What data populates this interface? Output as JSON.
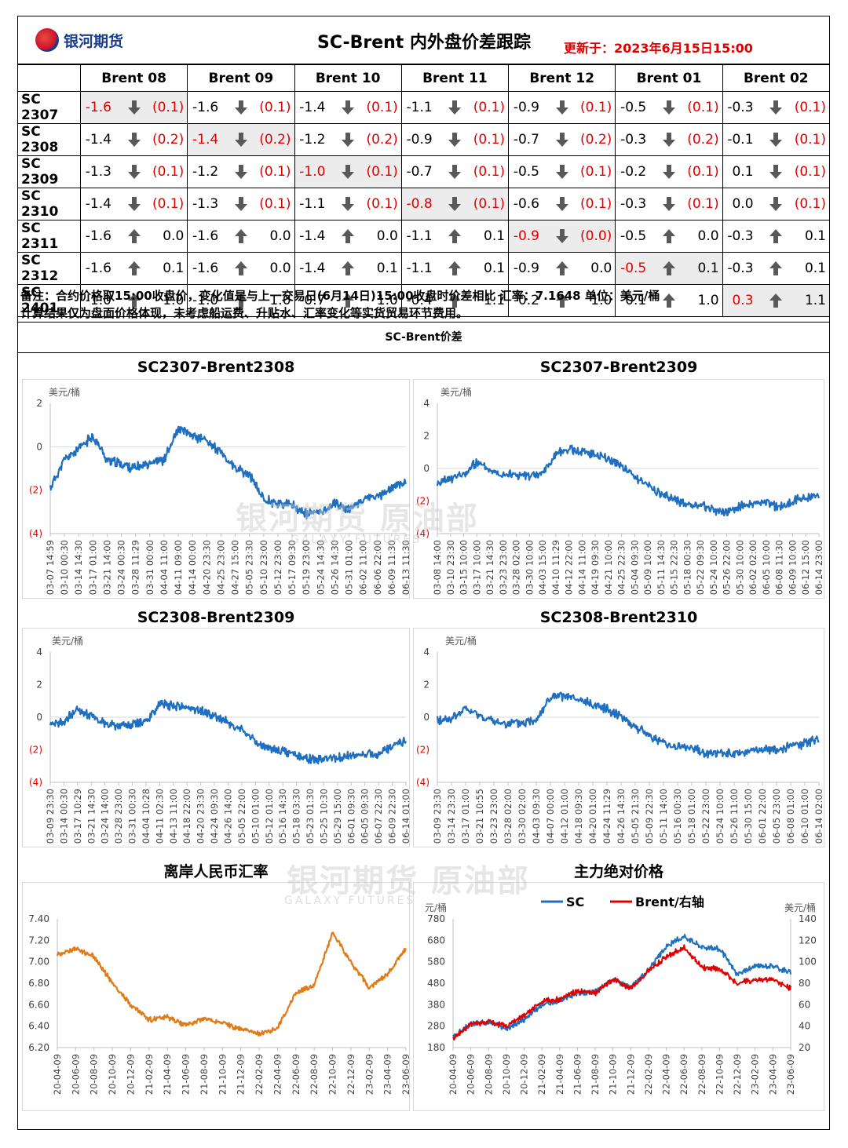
{
  "header": {
    "logo_text": "银河期货",
    "title": "SC-Brent 内外盘价差跟踪",
    "update": "更新于：2023年6月15日15:00"
  },
  "table": {
    "columns": [
      "Brent 08",
      "Brent 09",
      "Brent 10",
      "Brent 11",
      "Brent 12",
      "Brent 01",
      "Brent 02"
    ],
    "rows": [
      {
        "label": "SC 2307",
        "cells": [
          [
            "-1.6",
            "down",
            "(0.1)"
          ],
          [
            "-1.6",
            "down",
            "(0.1)"
          ],
          [
            "-1.4",
            "down",
            "(0.1)"
          ],
          [
            "-1.1",
            "down",
            "(0.1)"
          ],
          [
            "-0.9",
            "down",
            "(0.1)"
          ],
          [
            "-0.5",
            "down",
            "(0.1)"
          ],
          [
            "-0.3",
            "down",
            "(0.1)"
          ]
        ],
        "diag": 0
      },
      {
        "label": "SC 2308",
        "cells": [
          [
            "-1.4",
            "down",
            "(0.2)"
          ],
          [
            "-1.4",
            "down",
            "(0.2)"
          ],
          [
            "-1.2",
            "down",
            "(0.2)"
          ],
          [
            "-0.9",
            "down",
            "(0.1)"
          ],
          [
            "-0.7",
            "down",
            "(0.2)"
          ],
          [
            "-0.3",
            "down",
            "(0.2)"
          ],
          [
            "-0.1",
            "down",
            "(0.1)"
          ]
        ],
        "diag": 1
      },
      {
        "label": "SC 2309",
        "cells": [
          [
            "-1.3",
            "down",
            "(0.1)"
          ],
          [
            "-1.2",
            "down",
            "(0.1)"
          ],
          [
            "-1.0",
            "down",
            "(0.1)"
          ],
          [
            "-0.7",
            "down",
            "(0.1)"
          ],
          [
            "-0.5",
            "down",
            "(0.1)"
          ],
          [
            "-0.2",
            "down",
            "(0.1)"
          ],
          [
            "0.1",
            "down",
            "(0.1)"
          ]
        ],
        "diag": 2
      },
      {
        "label": "SC 2310",
        "cells": [
          [
            "-1.4",
            "down",
            "(0.1)"
          ],
          [
            "-1.3",
            "down",
            "(0.1)"
          ],
          [
            "-1.1",
            "down",
            "(0.1)"
          ],
          [
            "-0.8",
            "down",
            "(0.1)"
          ],
          [
            "-0.6",
            "down",
            "(0.1)"
          ],
          [
            "-0.3",
            "down",
            "(0.1)"
          ],
          [
            "0.0",
            "down",
            "(0.1)"
          ]
        ],
        "diag": 3
      },
      {
        "label": "SC 2311",
        "cells": [
          [
            "-1.6",
            "up",
            "0.0"
          ],
          [
            "-1.6",
            "up",
            "0.0"
          ],
          [
            "-1.4",
            "up",
            "0.0"
          ],
          [
            "-1.1",
            "up",
            "0.1"
          ],
          [
            "-0.9",
            "down",
            "(0.0)"
          ],
          [
            "-0.5",
            "up",
            "0.0"
          ],
          [
            "-0.3",
            "up",
            "0.1"
          ]
        ],
        "diag": 4
      },
      {
        "label": "SC 2312",
        "cells": [
          [
            "-1.6",
            "up",
            "0.1"
          ],
          [
            "-1.6",
            "up",
            "0.0"
          ],
          [
            "-1.4",
            "up",
            "0.1"
          ],
          [
            "-1.1",
            "up",
            "0.1"
          ],
          [
            "-0.9",
            "up",
            "0.0"
          ],
          [
            "-0.5",
            "up",
            "0.1"
          ],
          [
            "-0.3",
            "up",
            "0.1"
          ]
        ],
        "diag": 5
      },
      {
        "label": "SC 2401",
        "cells": [
          [
            "-1.0",
            "up",
            "1.0"
          ],
          [
            "-1.0",
            "up",
            "1.0"
          ],
          [
            "-0.7",
            "up",
            "1.0"
          ],
          [
            "-0.4",
            "up",
            "1.1"
          ],
          [
            "-0.2",
            "up",
            "1.0"
          ],
          [
            "0.1",
            "up",
            "1.0"
          ],
          [
            "0.3",
            "up",
            "1.1"
          ]
        ],
        "diag": 6
      }
    ]
  },
  "notes": {
    "line1": "备注：合约价格取15:00收盘价，变化值是与上一交易日(6月14日)15:00收盘时价差相比  汇率：7.1648  单位：美元/桶",
    "line2": "计算结果仅为盘面价格体现，未考虑船运费、升贴水、汇率变化等实货贸易环节费用。"
  },
  "section_label": "SC-Brent价差",
  "watermark": {
    "main": "银河期货  原油部",
    "sub": "GALAXY FUTURES"
  },
  "colors": {
    "spread_line": "#1f6fc0",
    "cny_line": "#e07b18",
    "sc_line": "#1f6fc0",
    "brent_line": "#e00000",
    "negative": "#e00000"
  },
  "chart_data": [
    {
      "type": "line",
      "title": "SC2307-Brent2308",
      "ylabel": "美元/桶",
      "ylim": [
        -4,
        2
      ],
      "yticks": [
        "2",
        "0",
        "(2)",
        "(4)"
      ],
      "x": [
        "03-07 14:59",
        "03-10 00:30",
        "03-14 14:30",
        "03-17 01:00",
        "03-21 14:00",
        "03-24 00:30",
        "03-28 11:29",
        "03-31 00:00",
        "04-04 11:00",
        "04-11 09:00",
        "04-14 00:00",
        "04-20 23:30",
        "04-25 23:00",
        "04-27 15:00",
        "05-05 23:30",
        "05-10 23:00",
        "05-12 23:00",
        "05-17 09:30",
        "05-19 23:00",
        "05-24 14:30",
        "05-26 14:30",
        "05-31 01:00",
        "06-02 11:00",
        "06-06 22:00",
        "06-09 11:30",
        "06-13 11:30"
      ],
      "values": [
        -1.9,
        -0.6,
        -0.1,
        0.5,
        -0.6,
        -0.8,
        -1.0,
        -0.7,
        -0.6,
        0.8,
        0.5,
        0.3,
        -0.3,
        -1.0,
        -1.3,
        -2.4,
        -2.6,
        -2.7,
        -3.1,
        -3.0,
        -2.6,
        -2.9,
        -2.4,
        -2.3,
        -1.9,
        -1.6
      ]
    },
    {
      "type": "line",
      "title": "SC2307-Brent2309",
      "ylabel": "美元/桶",
      "ylim": [
        -4,
        4
      ],
      "yticks": [
        "4",
        "2",
        "0",
        "(2)",
        "(4)"
      ],
      "x": [
        "03-08 14:00",
        "03-10 23:30",
        "03-15 10:00",
        "03-17 10:00",
        "03-21 14:30",
        "03-23 23:00",
        "03-28 02:00",
        "03-30 10:00",
        "04-03 15:00",
        "04-10 11:29",
        "04-12 22:00",
        "04-14 11:00",
        "04-19 09:30",
        "04-21 10:00",
        "04-25 22:30",
        "05-04 09:30",
        "05-09 10:00",
        "05-11 14:30",
        "05-15 22:30",
        "05-18 00:30",
        "05-22 09:30",
        "05-24 10:00",
        "05-26 22:00",
        "05-30 10:00",
        "06-02 02:00",
        "06-05 10:00",
        "06-08 11:30",
        "06-09 10:00",
        "06-12 15:00",
        "06-14 23:00"
      ],
      "values": [
        -1.0,
        -0.6,
        -0.4,
        0.4,
        -0.1,
        -0.3,
        -0.4,
        -0.5,
        -0.3,
        0.9,
        1.2,
        1.0,
        0.9,
        0.6,
        0.2,
        -0.5,
        -1.0,
        -1.6,
        -1.9,
        -2.3,
        -2.2,
        -2.6,
        -2.7,
        -2.3,
        -2.2,
        -2.1,
        -2.4,
        -2.0,
        -1.8,
        -1.6
      ]
    },
    {
      "type": "line",
      "title": "SC2308-Brent2309",
      "ylabel": "美元/桶",
      "ylim": [
        -4,
        4
      ],
      "yticks": [
        "4",
        "2",
        "0",
        "(2)",
        "(4)"
      ],
      "x": [
        "03-09 23:30",
        "03-14 00:30",
        "03-17 10:29",
        "03-21 14:30",
        "03-24 14:00",
        "03-28 23:00",
        "03-31 00:30",
        "04-04 10:28",
        "04-11 02:30",
        "04-13 11:00",
        "04-18 22:00",
        "04-20 23:30",
        "04-24 09:30",
        "04-26 14:00",
        "05-05 22:00",
        "05-10 01:00",
        "05-12 01:00",
        "05-16 14:30",
        "05-18 03:30",
        "05-23 01:30",
        "05-25 10:30",
        "05-29 15:00",
        "06-01 09:30",
        "06-05 09:30",
        "06-07 22:30",
        "06-09 22:30",
        "06-14 01:00"
      ],
      "values": [
        -0.6,
        -0.3,
        0.5,
        0.1,
        -0.4,
        -0.5,
        -0.5,
        -0.2,
        0.8,
        0.7,
        0.6,
        0.4,
        0.1,
        -0.3,
        -0.8,
        -1.5,
        -1.9,
        -2.1,
        -2.3,
        -2.6,
        -2.6,
        -2.5,
        -2.4,
        -2.3,
        -2.2,
        -1.8,
        -1.4
      ]
    },
    {
      "type": "line",
      "title": "SC2308-Brent2310",
      "ylabel": "美元/桶",
      "ylim": [
        -4,
        4
      ],
      "yticks": [
        "4",
        "2",
        "0",
        "(2)",
        "(4)"
      ],
      "x": [
        "03-09 23:30",
        "03-14 23:30",
        "03-17 01:00",
        "03-21 10:55",
        "03-23 23:00",
        "03-28 02:00",
        "03-30 02:00",
        "04-03 09:30",
        "04-07 00:00",
        "04-12 01:00",
        "04-18 09:30",
        "04-20 01:00",
        "04-24 11:29",
        "04-26 14:30",
        "05-05 21:30",
        "05-09 22:30",
        "05-11 14:00",
        "05-16 00:30",
        "05-18 01:00",
        "05-22 23:00",
        "05-24 10:00",
        "05-26 11:00",
        "05-30 15:00",
        "06-01 22:00",
        "06-05 23:00",
        "06-08 01:00",
        "06-10 01:00",
        "06-14 02:00"
      ],
      "values": [
        -0.2,
        -0.1,
        0.5,
        0.1,
        -0.3,
        -0.4,
        -0.4,
        -0.1,
        1.2,
        1.3,
        1.0,
        0.8,
        0.5,
        0.1,
        -0.6,
        -1.1,
        -1.6,
        -1.8,
        -1.9,
        -2.2,
        -2.2,
        -2.3,
        -2.1,
        -2.0,
        -2.0,
        -1.8,
        -1.6,
        -1.3
      ]
    },
    {
      "type": "line",
      "title": "离岸人民币汇率",
      "ylim": [
        6.2,
        7.4
      ],
      "yticks": [
        "7.40",
        "7.20",
        "7.00",
        "6.80",
        "6.60",
        "6.40",
        "6.20"
      ],
      "x": [
        "20-04-09",
        "20-06-09",
        "20-08-09",
        "20-10-09",
        "20-12-09",
        "21-02-09",
        "21-04-09",
        "21-06-09",
        "21-08-09",
        "21-10-09",
        "21-12-09",
        "22-02-09",
        "22-04-09",
        "22-06-09",
        "22-08-09",
        "22-10-09",
        "22-12-09",
        "23-02-09",
        "23-04-09",
        "23-06-09"
      ],
      "values": [
        7.07,
        7.12,
        7.05,
        6.8,
        6.6,
        6.46,
        6.48,
        6.41,
        6.47,
        6.43,
        6.37,
        6.33,
        6.38,
        6.71,
        6.78,
        7.27,
        7.0,
        6.76,
        6.88,
        7.13
      ]
    },
    {
      "type": "line",
      "title": "主力绝对价格",
      "ylabel": "元/桶",
      "y2label": "美元/桶",
      "ylim": [
        180,
        780
      ],
      "y2lim": [
        20,
        140
      ],
      "yticks": [
        "780",
        "680",
        "580",
        "480",
        "380",
        "280",
        "180"
      ],
      "y2ticks": [
        "140",
        "120",
        "100",
        "80",
        "60",
        "40",
        "20"
      ],
      "x": [
        "20-04-09",
        "20-06-09",
        "20-08-09",
        "20-10-09",
        "20-12-09",
        "21-02-09",
        "21-04-09",
        "21-06-09",
        "21-08-09",
        "21-10-09",
        "21-12-09",
        "22-02-09",
        "22-04-09",
        "22-06-09",
        "22-08-09",
        "22-10-09",
        "22-12-09",
        "23-02-09",
        "23-04-09",
        "23-06-09"
      ],
      "series": [
        {
          "name": "SC",
          "values": [
            230,
            290,
            300,
            270,
            310,
            380,
            400,
            430,
            440,
            500,
            460,
            540,
            650,
            700,
            650,
            640,
            520,
            560,
            560,
            530
          ]
        },
        {
          "name": "Brent/右轴",
          "values": [
            28,
            42,
            44,
            40,
            50,
            63,
            65,
            73,
            71,
            84,
            75,
            92,
            105,
            113,
            95,
            93,
            80,
            83,
            83,
            75
          ]
        }
      ]
    }
  ]
}
